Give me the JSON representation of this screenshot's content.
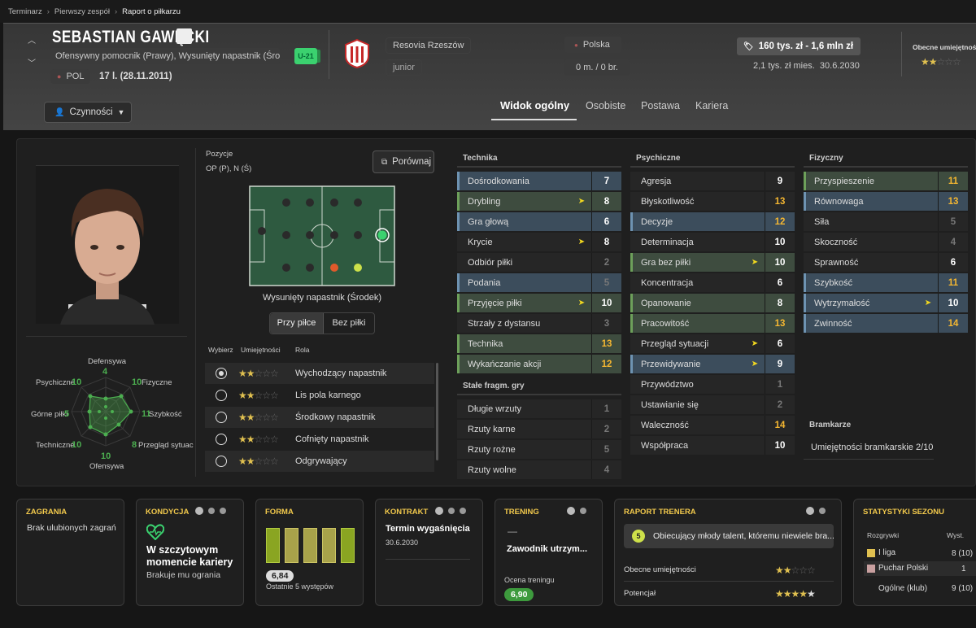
{
  "breadcrumb": [
    "Terminarz",
    "Pierwszy zespół",
    "Raport o piłkarzu"
  ],
  "player": {
    "name": "SEBASTIAN GAWĘCKI",
    "positions_text": "Ofensywny pomocnik (Prawy), Wysunięty napastnik (Środ...",
    "badge": "U-21",
    "nation_code": "POL",
    "age_text": "17 l. (28.11.2011)"
  },
  "club": {
    "name": "Resovia Rzeszów",
    "squad": "junior"
  },
  "nation": {
    "name": "Polska",
    "caps": "0 m. / 0 br."
  },
  "value": {
    "range": "160 tys. zł - 1,6 mln zł",
    "wage": "2,1 tys. zł mies.",
    "contract_end": "30.6.2030"
  },
  "current_ability": {
    "label": "Obecne umiejętności",
    "stars": 2
  },
  "actions": {
    "label": "Czynności"
  },
  "tabs": [
    "Widok ogólny",
    "Osobiste",
    "Postawa",
    "Kariera"
  ],
  "radar": {
    "labels": {
      "def": "Defensywa",
      "def_v": "4",
      "fiz": "Fizyczne",
      "fiz_v": "10",
      "szyb": "Szybkość",
      "szyb_v": "11",
      "prz": "Przegląd sytuac",
      "prz_v": "8",
      "ofe": "Ofensywa",
      "ofe_v": "10",
      "tech": "Techniczne",
      "tech_v": "10",
      "gor": "Górne piłki",
      "gor_v": "5",
      "psy": "Psychiczne",
      "psy_v": "10"
    }
  },
  "positions": {
    "label": "Pozycje",
    "value": "OP (P), N (Ś)",
    "compare": "Porównaj",
    "pitch_caption": "Wysunięty napastnik (Środek)",
    "toggle_on": "Przy piłce",
    "toggle_off": "Bez piłki"
  },
  "roles": {
    "headers": [
      "Wybierz",
      "Umiejętności",
      "Rola"
    ],
    "items": [
      {
        "name": "Wychodzący napastnik",
        "stars": 2,
        "selected": true
      },
      {
        "name": "Lis pola karnego",
        "stars": 2,
        "selected": false
      },
      {
        "name": "Środkowy napastnik",
        "stars": 2,
        "selected": false
      },
      {
        "name": "Cofnięty napastnik",
        "stars": 2,
        "selected": false
      },
      {
        "name": "Odgrywający",
        "stars": 2,
        "selected": false
      }
    ]
  },
  "attributes": {
    "technika": {
      "title": "Technika",
      "items": [
        {
          "name": "Dośrodkowania",
          "value": "7",
          "hl": "blue"
        },
        {
          "name": "Drybling",
          "value": "8",
          "hl": "green",
          "arrow": true
        },
        {
          "name": "Gra głową",
          "value": "6",
          "hl": "blue"
        },
        {
          "name": "Krycie",
          "value": "8",
          "hl": "",
          "arrow": true
        },
        {
          "name": "Odbiór piłki",
          "value": "2",
          "hl": ""
        },
        {
          "name": "Podania",
          "value": "5",
          "hl": "blue"
        },
        {
          "name": "Przyjęcie piłki",
          "value": "10",
          "hl": "green",
          "arrow": true
        },
        {
          "name": "Strzały z dystansu",
          "value": "3",
          "hl": ""
        },
        {
          "name": "Technika",
          "value": "13",
          "hl": "green"
        },
        {
          "name": "Wykańczanie akcji",
          "value": "12",
          "hl": "green"
        }
      ]
    },
    "stale": {
      "title": "Stałe fragm. gry",
      "items": [
        {
          "name": "Długie wrzuty",
          "value": "1"
        },
        {
          "name": "Rzuty karne",
          "value": "2"
        },
        {
          "name": "Rzuty rożne",
          "value": "5"
        },
        {
          "name": "Rzuty wolne",
          "value": "4"
        }
      ]
    },
    "psychiczne": {
      "title": "Psychiczne",
      "items": [
        {
          "name": "Agresja",
          "value": "9",
          "hl": ""
        },
        {
          "name": "Błyskotliwość",
          "value": "13",
          "hl": ""
        },
        {
          "name": "Decyzje",
          "value": "12",
          "hl": "blue"
        },
        {
          "name": "Determinacja",
          "value": "10",
          "hl": ""
        },
        {
          "name": "Gra bez piłki",
          "value": "10",
          "hl": "green",
          "arrow": true
        },
        {
          "name": "Koncentracja",
          "value": "6",
          "hl": ""
        },
        {
          "name": "Opanowanie",
          "value": "8",
          "hl": "green"
        },
        {
          "name": "Pracowitość",
          "value": "13",
          "hl": "green"
        },
        {
          "name": "Przegląd sytuacji",
          "value": "6",
          "hl": "",
          "arrow": true
        },
        {
          "name": "Przewidywanie",
          "value": "9",
          "hl": "blue",
          "arrow": true
        },
        {
          "name": "Przywództwo",
          "value": "1",
          "hl": ""
        },
        {
          "name": "Ustawianie się",
          "value": "2",
          "hl": ""
        },
        {
          "name": "Waleczność",
          "value": "14",
          "hl": ""
        },
        {
          "name": "Współpraca",
          "value": "10",
          "hl": ""
        }
      ]
    },
    "fizyczne": {
      "title": "Fizyczny",
      "items": [
        {
          "name": "Przyspieszenie",
          "value": "11",
          "hl": "green"
        },
        {
          "name": "Równowaga",
          "value": "13",
          "hl": "blue"
        },
        {
          "name": "Siła",
          "value": "5",
          "hl": ""
        },
        {
          "name": "Skoczność",
          "value": "4",
          "hl": ""
        },
        {
          "name": "Sprawność",
          "value": "6",
          "hl": ""
        },
        {
          "name": "Szybkość",
          "value": "11",
          "hl": "blue"
        },
        {
          "name": "Wytrzymałość",
          "value": "10",
          "hl": "blue",
          "arrow": true
        },
        {
          "name": "Zwinność",
          "value": "14",
          "hl": "blue"
        }
      ]
    },
    "bramkarze": {
      "title": "Bramkarze",
      "label": "Umiejętności bramkarskie",
      "value": "2/10"
    }
  },
  "cards": {
    "zagrania": {
      "title": "ZAGRANIA",
      "text": "Brak ulubionych zagrań"
    },
    "kondycja": {
      "title": "KONDYCJA",
      "headline": "W szczytowym momencie kariery",
      "sub": "Brakuje mu ogrania"
    },
    "forma": {
      "title": "FORMA",
      "rating": "6,84",
      "sub": "Ostatnie 5 występów"
    },
    "kontrakt": {
      "title": "KONTRAKT",
      "headline": "Termin wygaśnięcia",
      "date": "30.6.2030"
    },
    "trening": {
      "title": "TRENING",
      "dash": "—",
      "headline": "Zawodnik utrzym...",
      "label": "Ocena treningu",
      "rating": "6,90"
    },
    "raport": {
      "title": "RAPORT TRENERA",
      "badge": "5",
      "text": "Obiecujący młody talent, któremu niewiele bra...",
      "ca_label": "Obecne umiejętności",
      "ca_stars": 2,
      "pa_label": "Potencjał",
      "pa_stars": 4
    },
    "statystyki": {
      "title": "STATYSTYKI SEZONU",
      "headers": [
        "Rozgrywki",
        "Wyst."
      ],
      "rows": [
        {
          "name": "I liga",
          "value": "8 (10)"
        },
        {
          "name": "Puchar Polski",
          "value": "1"
        },
        {
          "name": "Ogólne (klub)",
          "value": "9 (10)"
        }
      ]
    }
  },
  "colors": {
    "accent_yellow": "#f5b731",
    "green": "#3d9a3d",
    "row_blue": "#3c4d5c",
    "row_green": "#3e4c3f"
  }
}
